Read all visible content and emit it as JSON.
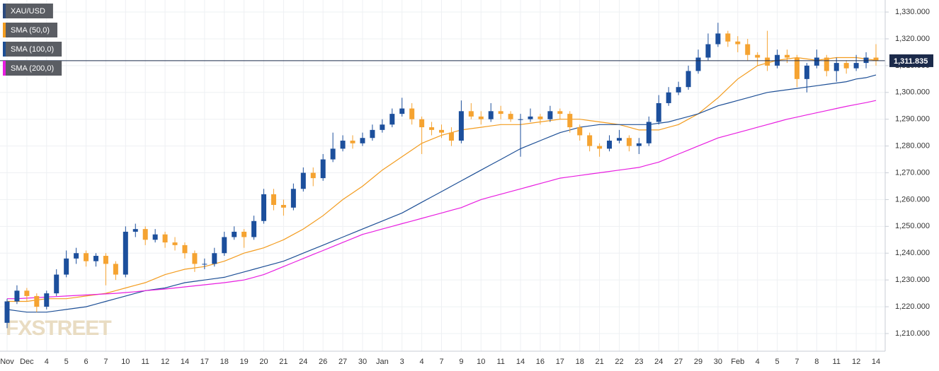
{
  "chart_data": {
    "type": "candlestick",
    "watermark": "FXSTREET",
    "categories": [
      "Nov",
      null,
      "Dec",
      null,
      "4",
      null,
      "5",
      null,
      "6",
      null,
      "7",
      null,
      "10",
      null,
      "11",
      null,
      "12",
      null,
      "14",
      null,
      "17",
      null,
      "18",
      null,
      "19",
      null,
      "20",
      null,
      "21",
      null,
      "24",
      null,
      "26",
      null,
      "27",
      null,
      "30",
      null,
      "Jan",
      null,
      "3",
      null,
      "4",
      null,
      "7",
      null,
      "9",
      null,
      "10",
      null,
      "11",
      null,
      "14",
      null,
      "16",
      null,
      "17",
      null,
      "18",
      null,
      "21",
      null,
      "22",
      null,
      "23",
      null,
      "24",
      null,
      "27",
      null,
      "29",
      null,
      "30",
      null,
      "Feb",
      null,
      "4",
      null,
      "5",
      null,
      "7",
      null,
      "8",
      null,
      "11",
      null,
      "12",
      null,
      "14"
    ],
    "ylim": [
      1203.4,
      1334.5
    ],
    "yticks": [
      {
        "value": 1210,
        "label": "1,210.000"
      },
      {
        "value": 1220,
        "label": "1,220.000"
      },
      {
        "value": 1230,
        "label": "1,230.000"
      },
      {
        "value": 1240,
        "label": "1,240.000"
      },
      {
        "value": 1250,
        "label": "1,250.000"
      },
      {
        "value": 1260,
        "label": "1,260.000"
      },
      {
        "value": 1270,
        "label": "1,270.000"
      },
      {
        "value": 1280,
        "label": "1,280.000"
      },
      {
        "value": 1290,
        "label": "1,290.000"
      },
      {
        "value": 1300,
        "label": "1,300.000"
      },
      {
        "value": 1310,
        "label": "1,310.000"
      },
      {
        "value": 1320,
        "label": "1,320.000"
      },
      {
        "value": 1330,
        "label": "1,330.000"
      }
    ],
    "grid": true,
    "last_price": {
      "value": 1311.835,
      "label": "1,311.835",
      "color": "#1b2a4a"
    },
    "series": [
      {
        "name": "XAU/USD",
        "color": "#2b4a7e",
        "up_color": "#1c4f9c",
        "down_color": "#f5a331",
        "values": [
          [
            1214,
            1223,
            1212,
            1222
          ],
          [
            1222,
            1228,
            1221,
            1226
          ],
          [
            1226,
            1227,
            1222,
            1224
          ],
          [
            1224,
            1225,
            1218,
            1220
          ],
          [
            1220,
            1226,
            1219,
            1225
          ],
          [
            1225,
            1234,
            1224,
            1232
          ],
          [
            1232,
            1241,
            1231,
            1238
          ],
          [
            1238,
            1242,
            1236,
            1240
          ],
          [
            1240,
            1241,
            1235,
            1237
          ],
          [
            1237,
            1240,
            1235,
            1239
          ],
          [
            1239,
            1240,
            1228,
            1236
          ],
          [
            1236,
            1237,
            1230,
            1232
          ],
          [
            1232,
            1250,
            1231,
            1248
          ],
          [
            1248,
            1251,
            1246,
            1249
          ],
          [
            1249,
            1250,
            1243,
            1245
          ],
          [
            1245,
            1249,
            1244,
            1247
          ],
          [
            1247,
            1248,
            1242,
            1244
          ],
          [
            1244,
            1246,
            1241,
            1243
          ],
          [
            1243,
            1244,
            1238,
            1240
          ],
          [
            1240,
            1241,
            1233,
            1236
          ],
          [
            1236,
            1238,
            1234,
            1236
          ],
          [
            1236,
            1242,
            1235,
            1240
          ],
          [
            1240,
            1248,
            1239,
            1246
          ],
          [
            1246,
            1250,
            1245,
            1248
          ],
          [
            1248,
            1249,
            1242,
            1246
          ],
          [
            1246,
            1254,
            1245,
            1252
          ],
          [
            1252,
            1264,
            1251,
            1262
          ],
          [
            1262,
            1264,
            1256,
            1258
          ],
          [
            1258,
            1260,
            1254,
            1257
          ],
          [
            1257,
            1266,
            1256,
            1264
          ],
          [
            1264,
            1272,
            1263,
            1270
          ],
          [
            1270,
            1272,
            1265,
            1268
          ],
          [
            1268,
            1277,
            1267,
            1275
          ],
          [
            1275,
            1285,
            1274,
            1279
          ],
          [
            1279,
            1284,
            1278,
            1282
          ],
          [
            1282,
            1284,
            1279,
            1281
          ],
          [
            1281,
            1285,
            1280,
            1283
          ],
          [
            1283,
            1288,
            1282,
            1286
          ],
          [
            1286,
            1290,
            1285,
            1288
          ],
          [
            1288,
            1294,
            1287,
            1292
          ],
          [
            1292,
            1298,
            1291,
            1294
          ],
          [
            1294,
            1296,
            1288,
            1290
          ],
          [
            1290,
            1291,
            1277,
            1287
          ],
          [
            1287,
            1289,
            1284,
            1286
          ],
          [
            1286,
            1288,
            1283,
            1285
          ],
          [
            1285,
            1287,
            1280,
            1282
          ],
          [
            1282,
            1297,
            1281,
            1293
          ],
          [
            1293,
            1296,
            1290,
            1291
          ],
          [
            1291,
            1293,
            1288,
            1290
          ],
          [
            1290,
            1296,
            1289,
            1293
          ],
          [
            1293,
            1295,
            1290,
            1292
          ],
          [
            1292,
            1293,
            1289,
            1290
          ],
          [
            1290,
            1292,
            1276,
            1290
          ],
          [
            1290,
            1294,
            1289,
            1291
          ],
          [
            1291,
            1292,
            1288,
            1290
          ],
          [
            1290,
            1295,
            1289,
            1293
          ],
          [
            1293,
            1294,
            1290,
            1292
          ],
          [
            1292,
            1293,
            1285,
            1287
          ],
          [
            1287,
            1288,
            1282,
            1284
          ],
          [
            1284,
            1285,
            1278,
            1280
          ],
          [
            1280,
            1281,
            1276,
            1279
          ],
          [
            1279,
            1284,
            1278,
            1282
          ],
          [
            1282,
            1286,
            1281,
            1283
          ],
          [
            1283,
            1284,
            1278,
            1280
          ],
          [
            1280,
            1283,
            1277,
            1281
          ],
          [
            1281,
            1291,
            1280,
            1289
          ],
          [
            1289,
            1299,
            1288,
            1296
          ],
          [
            1296,
            1302,
            1295,
            1300
          ],
          [
            1300,
            1304,
            1299,
            1302
          ],
          [
            1302,
            1310,
            1301,
            1308
          ],
          [
            1308,
            1316,
            1307,
            1313
          ],
          [
            1313,
            1322,
            1312,
            1318
          ],
          [
            1318,
            1326,
            1317,
            1322
          ],
          [
            1322,
            1323,
            1317,
            1319
          ],
          [
            1319,
            1321,
            1315,
            1318
          ],
          [
            1318,
            1320,
            1312,
            1314
          ],
          [
            1314,
            1315,
            1310,
            1313
          ],
          [
            1313,
            1323,
            1308,
            1310
          ],
          [
            1310,
            1316,
            1309,
            1314
          ],
          [
            1314,
            1316,
            1311,
            1313
          ],
          [
            1313,
            1314,
            1302,
            1305
          ],
          [
            1305,
            1311,
            1300,
            1310
          ],
          [
            1310,
            1316,
            1309,
            1313
          ],
          [
            1313,
            1314,
            1306,
            1308
          ],
          [
            1308,
            1313,
            1304,
            1311
          ],
          [
            1311,
            1312,
            1307,
            1309
          ],
          [
            1309,
            1314,
            1308,
            1311
          ],
          [
            1311,
            1315,
            1309,
            1313
          ],
          [
            1313,
            1318,
            1310,
            1311.835
          ]
        ]
      },
      {
        "name": "SMA (50,0)",
        "type": "line",
        "color": "#f39c1f",
        "values": [
          1222,
          1222,
          1222,
          1222.5,
          1223,
          1223,
          1223,
          1223.5,
          1224,
          1224.5,
          1225,
          1226,
          1227,
          1228,
          1229,
          1230.5,
          1232,
          1233,
          1234,
          1234.5,
          1235,
          1236,
          1237,
          1238.5,
          1240,
          1241,
          1242,
          1243.5,
          1245,
          1247,
          1249,
          1251.5,
          1254,
          1257,
          1260,
          1262.5,
          1265,
          1268,
          1271,
          1273.5,
          1276,
          1278.5,
          1281,
          1282.5,
          1284,
          1285,
          1286,
          1286.5,
          1287,
          1287.5,
          1288,
          1288,
          1288,
          1288.5,
          1289,
          1289.5,
          1290,
          1290,
          1290,
          1289.5,
          1289,
          1288.5,
          1288,
          1287,
          1286,
          1286,
          1286,
          1287,
          1288,
          1290,
          1292,
          1295,
          1298,
          1301.5,
          1305,
          1307.5,
          1310,
          1311,
          1312,
          1312.5,
          1313,
          1312.5,
          1312,
          1312.5,
          1313,
          1313,
          1313,
          1312.5,
          1312
        ]
      },
      {
        "name": "SMA (100,0)",
        "type": "line",
        "color": "#1d4f96",
        "values": [
          1219,
          1218.5,
          1218,
          1218,
          1218,
          1218.5,
          1219,
          1219.5,
          1220,
          1221,
          1222,
          1223,
          1224,
          1225,
          1226,
          1226.5,
          1227,
          1228,
          1229,
          1229.5,
          1230,
          1230.5,
          1231,
          1232,
          1233,
          1234,
          1235,
          1236,
          1237,
          1238.5,
          1240,
          1241.5,
          1243,
          1244.5,
          1246,
          1247.5,
          1249,
          1250.5,
          1252,
          1253.5,
          1255,
          1257,
          1259,
          1261,
          1263,
          1265,
          1267,
          1269,
          1271,
          1273,
          1275,
          1277,
          1279,
          1280.5,
          1282,
          1283.5,
          1285,
          1286,
          1287,
          1287.5,
          1288,
          1288,
          1288,
          1288,
          1288,
          1288,
          1288.5,
          1289,
          1290,
          1291,
          1292,
          1293.5,
          1295,
          1296,
          1297,
          1298,
          1299,
          1300,
          1300.5,
          1301,
          1301.5,
          1302,
          1302.5,
          1303,
          1303.5,
          1304,
          1305,
          1305.5,
          1306.5
        ]
      },
      {
        "name": "SMA (200,0)",
        "type": "line",
        "color": "#e81ee0",
        "values": [
          1223,
          1223,
          1223.2,
          1223.4,
          1223.6,
          1223.8,
          1224,
          1224.2,
          1224.4,
          1224.6,
          1224.8,
          1225,
          1225.3,
          1225.6,
          1226,
          1226.3,
          1226.6,
          1227,
          1227.4,
          1227.8,
          1228.2,
          1228.6,
          1229,
          1229.5,
          1230,
          1231,
          1232,
          1233.5,
          1235,
          1236.5,
          1238,
          1239.5,
          1241,
          1242.5,
          1244,
          1245.5,
          1247,
          1248,
          1249,
          1250,
          1251,
          1252,
          1253,
          1254,
          1255,
          1256,
          1257,
          1258.5,
          1260,
          1261,
          1262,
          1263,
          1264,
          1265,
          1266,
          1267,
          1268,
          1268.5,
          1269,
          1269.5,
          1270,
          1270.5,
          1271,
          1271.5,
          1272,
          1273,
          1274,
          1275.5,
          1277,
          1278.5,
          1280,
          1281.5,
          1283,
          1284,
          1285,
          1286,
          1287,
          1288,
          1289,
          1290,
          1290.8,
          1291.6,
          1292.4,
          1293.2,
          1294,
          1294.8,
          1295.5,
          1296.2,
          1297
        ]
      }
    ]
  }
}
